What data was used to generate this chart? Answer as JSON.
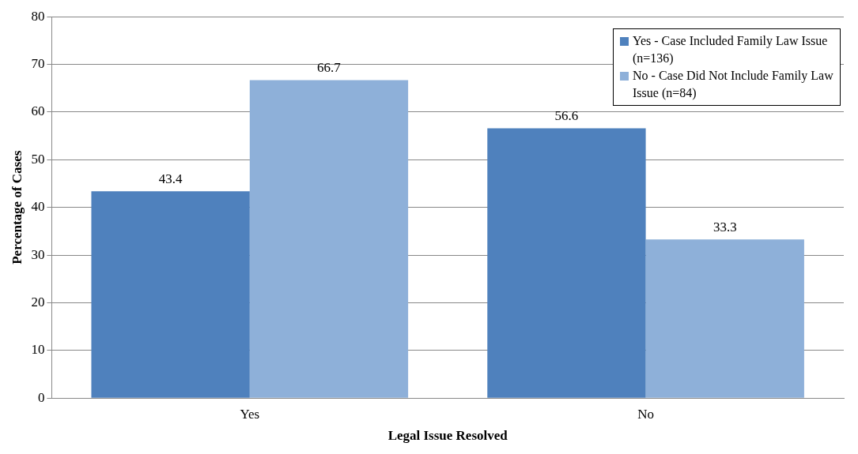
{
  "chart_data": {
    "type": "bar",
    "xlabel": "Legal Issue Resolved",
    "ylabel": "Percentage of Cases",
    "categories": [
      "Yes",
      "No"
    ],
    "series": [
      {
        "name": "Yes - Case Included Family Law Issue (n=136)",
        "color": "#4f81bd",
        "values": [
          43.4,
          56.6
        ]
      },
      {
        "name": "No - Case Did Not Include Family Law Issue (n=84)",
        "color": "#8eb0d9",
        "values": [
          66.7,
          33.3
        ]
      }
    ],
    "ylim": [
      0,
      80
    ],
    "yticks": [
      0,
      10,
      20,
      30,
      40,
      50,
      60,
      70,
      80
    ],
    "grid": "y",
    "legend": "top right",
    "data_labels": true
  }
}
